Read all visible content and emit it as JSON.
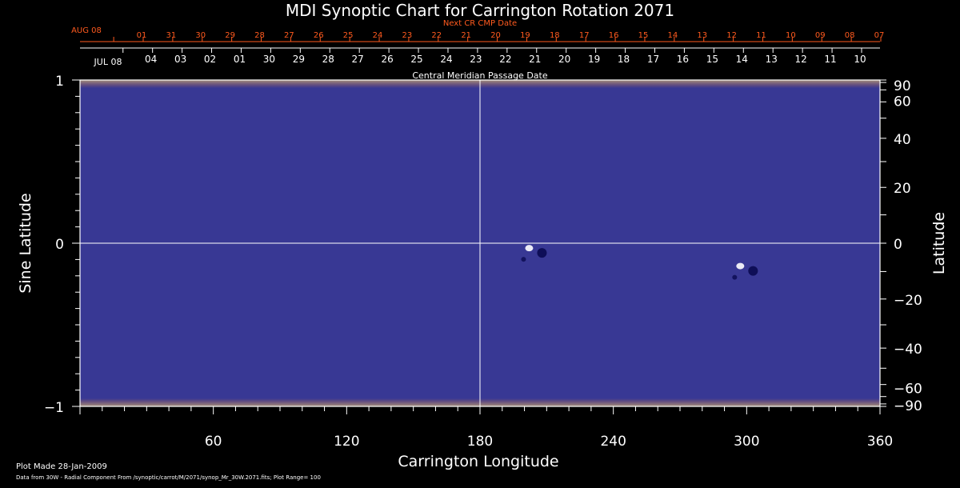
{
  "chart_data": {
    "type": "heatmap",
    "title": "MDI Synoptic Chart for Carrington Rotation 2071",
    "xlabel": "Carrington Longitude",
    "ylabel_left": "Sine Latitude",
    "ylabel_right": "Latitude",
    "xlim": [
      0,
      360
    ],
    "ylim": [
      -1,
      1
    ],
    "x_ticks": [
      60,
      120,
      180,
      240,
      300,
      360
    ],
    "y_left_ticks": [
      {
        "v": 1,
        "label": "1"
      },
      {
        "v": 0,
        "label": "0"
      },
      {
        "v": -1,
        "label": "−1"
      }
    ],
    "y_right_ticks": [
      {
        "deg": 90,
        "label": "90"
      },
      {
        "deg": 60,
        "label": "60"
      },
      {
        "deg": 40,
        "label": "40"
      },
      {
        "deg": 20,
        "label": "20"
      },
      {
        "deg": 0,
        "label": "0"
      },
      {
        "deg": -20,
        "label": "−20"
      },
      {
        "deg": -40,
        "label": "−40"
      },
      {
        "deg": -60,
        "label": "−60"
      },
      {
        "deg": -90,
        "label": "−90"
      }
    ],
    "gridlines": {
      "x": [
        180
      ],
      "y": [
        0
      ]
    },
    "colormap": [
      "#0a0a50",
      "#7a1d0a",
      "#e63c00",
      "#ff7a18",
      "#ffd24a",
      "#ffffff"
    ],
    "plot_range": 100,
    "top_axis_label": "Central Meridian Passage Date",
    "top_axis_dates": [
      "JUL 08",
      "04",
      "03",
      "02",
      "01",
      "30",
      "29",
      "28",
      "27",
      "26",
      "25",
      "24",
      "23",
      "22",
      "21",
      "20",
      "19",
      "18",
      "17",
      "16",
      "15",
      "14",
      "13",
      "12",
      "11",
      "10"
    ],
    "next_cr_label": "Next CR CMP Date",
    "next_cr_dates": [
      "AUG 08",
      "01",
      "31",
      "30",
      "29",
      "28",
      "27",
      "26",
      "25",
      "24",
      "23",
      "22",
      "21",
      "20",
      "19",
      "18",
      "17",
      "16",
      "15",
      "14",
      "13",
      "12",
      "11",
      "10",
      "09",
      "08",
      "07"
    ],
    "active_regions": [
      {
        "lon": 205,
        "lat": -0.04,
        "polarity": "bipolar"
      },
      {
        "lon": 300,
        "lat": -0.15,
        "polarity": "bipolar"
      }
    ]
  },
  "footer": {
    "plot_made": "Plot Made 28-Jan-2009",
    "source": "Data from 30W - Radial Component From /synoptic/carrot/M/2071/synop_Mr_30W.2071.fits; Plot Range= 100"
  },
  "colors": {
    "background": "#000000",
    "axes": "#ffffff",
    "secondary_axis": "#ff5a1e"
  }
}
